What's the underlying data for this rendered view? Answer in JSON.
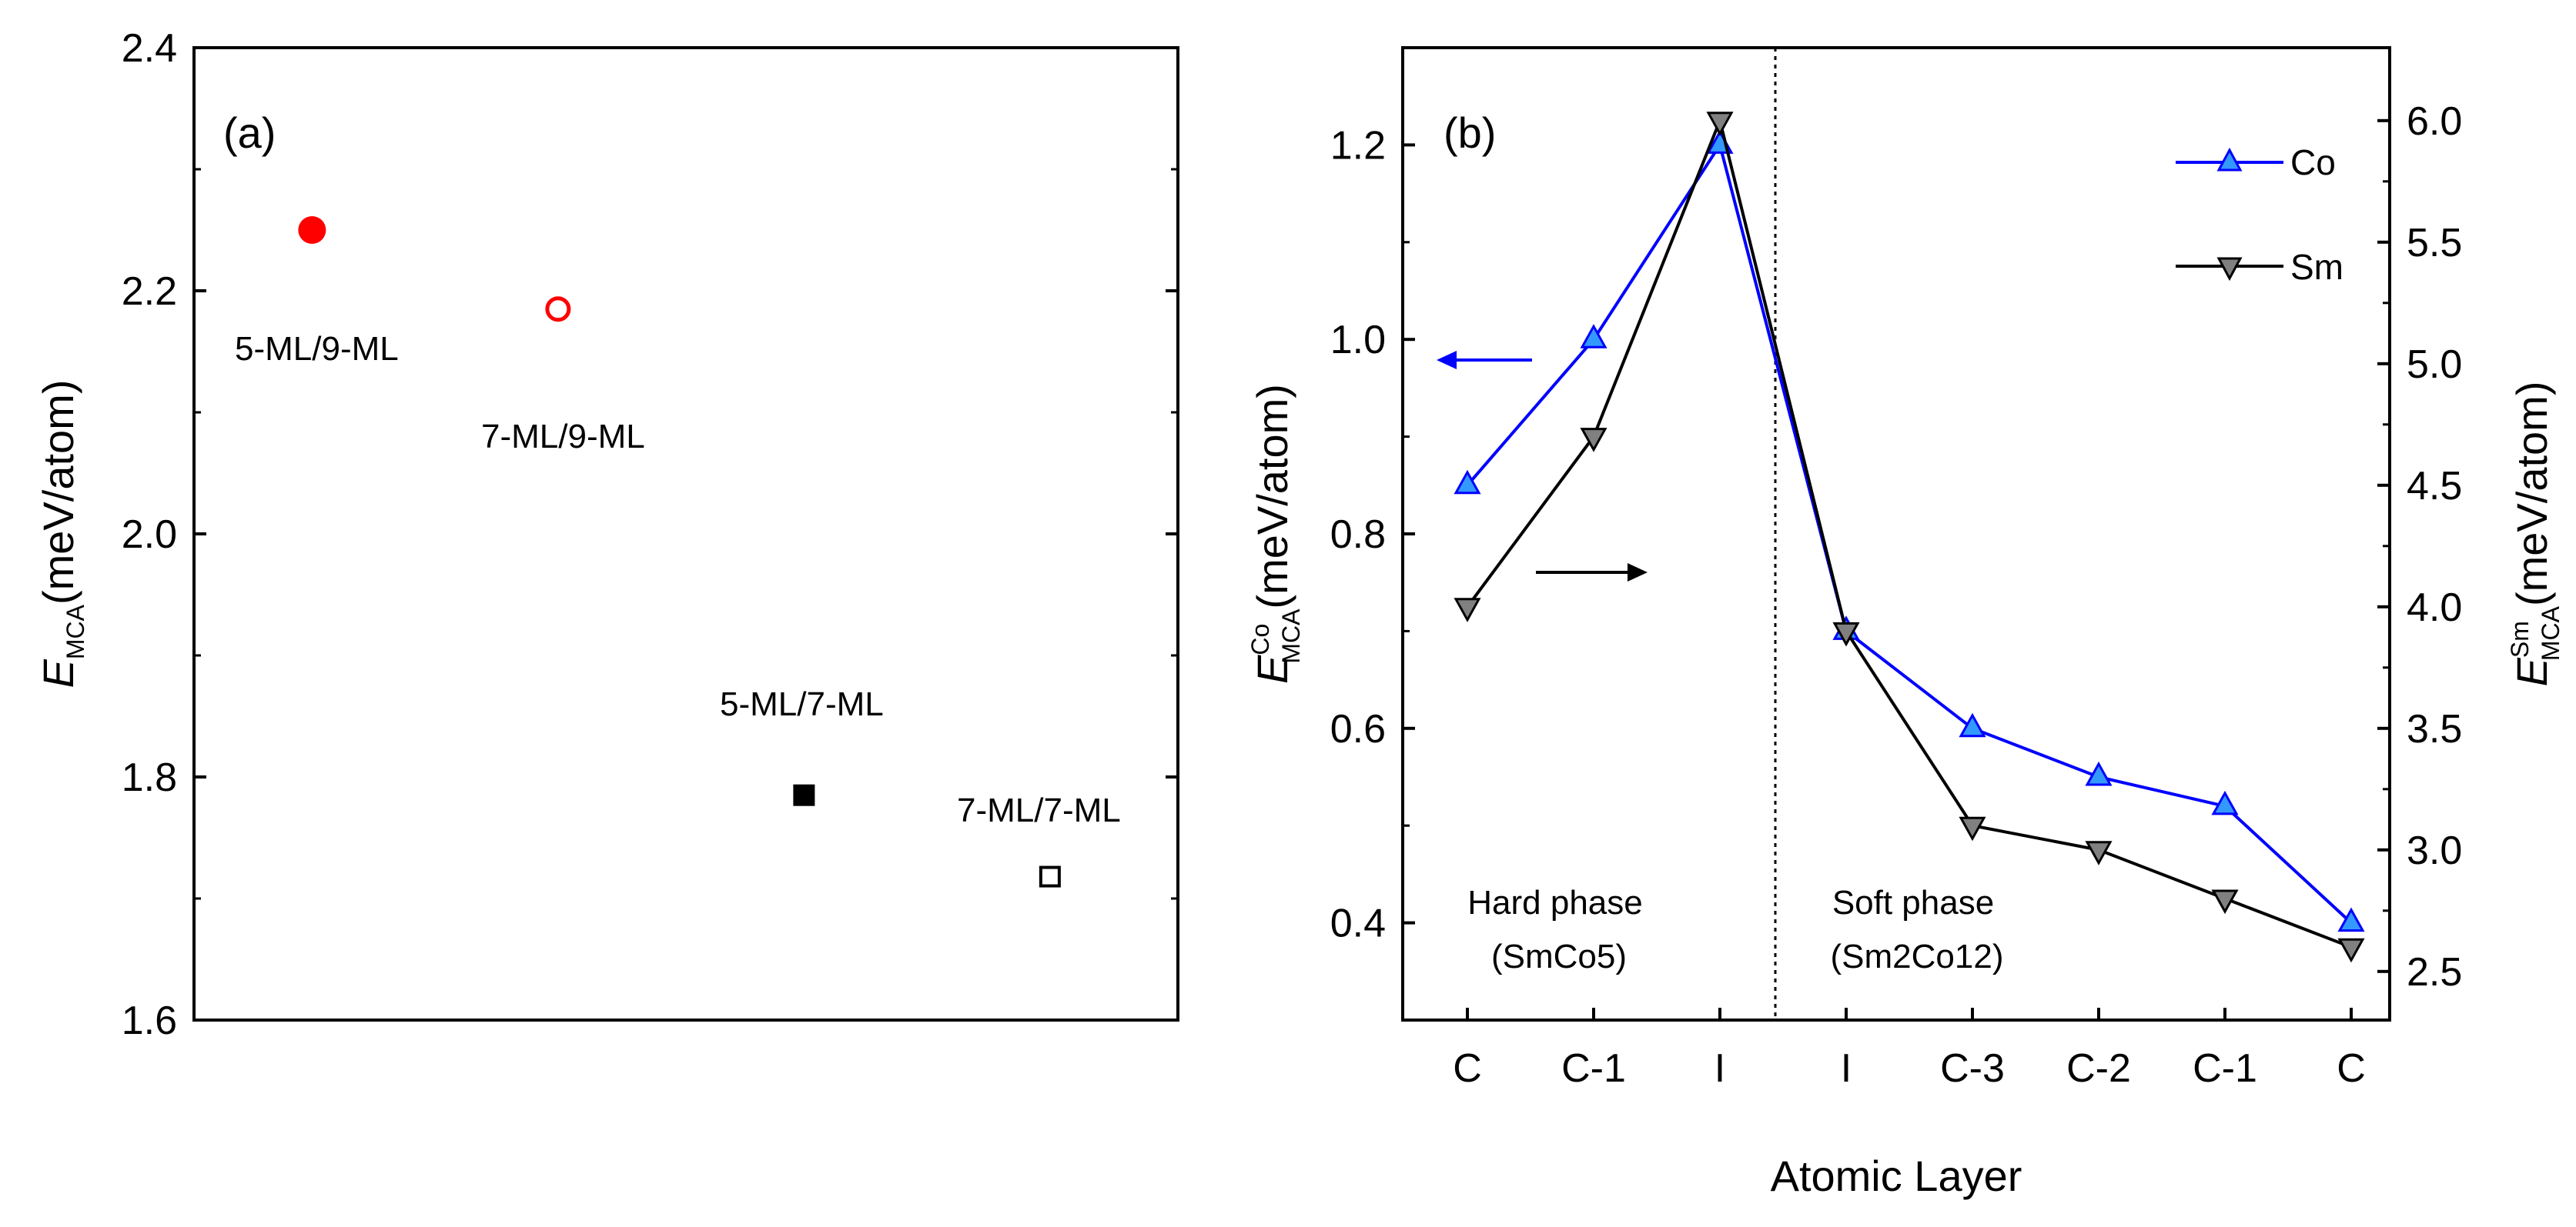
{
  "chart_data": [
    {
      "type": "scatter",
      "panel_label": "(a)",
      "ylabel_main": "E",
      "ylabel_sub": "MCA",
      "ylabel_unit": "(meV/atom)",
      "ylim": [
        1.6,
        2.4
      ],
      "yticks": [
        1.6,
        1.8,
        2.0,
        2.2,
        2.4
      ],
      "ytick_labels": [
        "1.6",
        "1.8",
        "2.0",
        "2.2",
        "2.4"
      ],
      "xlim": [
        0,
        5
      ],
      "points": [
        {
          "label": "5-ML/9-ML",
          "x": 0.6,
          "y": 2.25,
          "marker": "circle",
          "filled": true,
          "color": "#ff0000"
        },
        {
          "label": "7-ML/9-ML",
          "x": 1.85,
          "y": 2.185,
          "marker": "circle",
          "filled": false,
          "color": "#ff0000"
        },
        {
          "label": "5-ML/7-ML",
          "x": 3.1,
          "y": 1.785,
          "marker": "square",
          "filled": true,
          "color": "#000000"
        },
        {
          "label": "7-ML/7-ML",
          "x": 4.35,
          "y": 1.718,
          "marker": "square",
          "filled": false,
          "color": "#000000"
        }
      ]
    },
    {
      "type": "line",
      "panel_label": "(b)",
      "xlabel": "Atomic Layer",
      "categories": [
        "C",
        "C-1",
        "I",
        "I",
        "C-3",
        "C-2",
        "C-1",
        "C"
      ],
      "y_left": {
        "label_main": "E",
        "label_sup": "Co",
        "label_sub": "MCA",
        "label_unit": "(meV/atom)",
        "lim": [
          0.3,
          1.3
        ],
        "ticks": [
          0.4,
          0.6,
          0.8,
          1.0,
          1.2
        ],
        "tick_labels": [
          "0.4",
          "0.6",
          "0.8",
          "1.0",
          "1.2"
        ]
      },
      "y_right": {
        "label_main": "E",
        "label_sup": "Sm",
        "label_sub": "MCA",
        "label_unit": "(meV/atom)",
        "lim": [
          2.3,
          6.3
        ],
        "ticks": [
          2.5,
          3.0,
          3.5,
          4.0,
          4.5,
          5.0,
          5.5,
          6.0
        ],
        "tick_labels": [
          "2.5",
          "3.0",
          "3.5",
          "4.0",
          "4.5",
          "5.0",
          "5.5",
          "6.0"
        ]
      },
      "series": [
        {
          "name": "Co",
          "axis": "left",
          "color": "#0000ff",
          "marker_fill": "#3399ff",
          "marker": "triangle-up",
          "values": [
            0.85,
            1.0,
            1.2,
            0.7,
            0.6,
            0.55,
            0.52,
            0.4
          ]
        },
        {
          "name": "Sm",
          "axis": "right",
          "color": "#000000",
          "marker_fill": "#808080",
          "marker": "triangle-down",
          "values": [
            4.0,
            4.7,
            6.0,
            3.9,
            3.1,
            3.0,
            2.8,
            2.6
          ]
        }
      ],
      "phase_annotations": [
        {
          "title": "Hard phase",
          "formula": "(SmCo5)"
        },
        {
          "title": "Soft phase",
          "formula": "(Sm2Co12)"
        }
      ]
    }
  ]
}
